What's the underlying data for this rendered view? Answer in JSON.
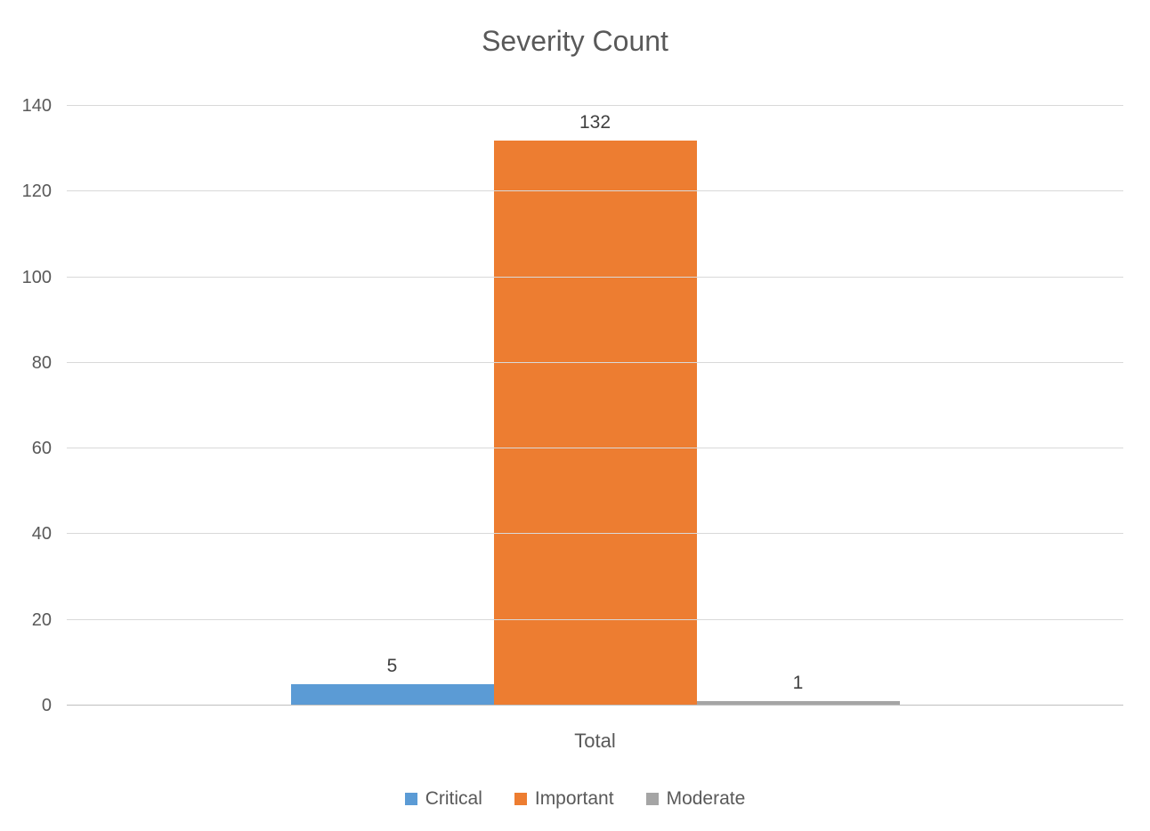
{
  "chart_data": {
    "type": "bar",
    "title": "Severity Count",
    "xlabel": "",
    "ylabel": "",
    "categories": [
      "Total"
    ],
    "series": [
      {
        "name": "Critical",
        "values": [
          5
        ],
        "color": "#5B9BD5"
      },
      {
        "name": "Important",
        "values": [
          132
        ],
        "color": "#ED7D31"
      },
      {
        "name": "Moderate",
        "values": [
          1
        ],
        "color": "#A5A5A5"
      }
    ],
    "ylim": [
      0,
      140
    ],
    "yticks": [
      0,
      20,
      40,
      60,
      80,
      100,
      120,
      140
    ],
    "grid": true,
    "data_labels": true,
    "legend_position": "bottom",
    "colors": {
      "gridline": "#D9D9D9",
      "axis_text": "#595959",
      "data_label_text": "#404040",
      "title_text": "#595959"
    }
  }
}
